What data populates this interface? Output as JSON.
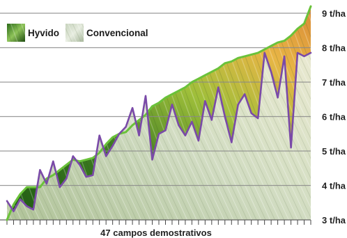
{
  "chart_data": {
    "type": "line",
    "xlabel": "47 campos demostrativos",
    "ylabel": "",
    "ylim": [
      3,
      9.2
    ],
    "yticks": [
      {
        "value": 3,
        "label": "3 t/ha"
      },
      {
        "value": 4,
        "label": "4 t/ha"
      },
      {
        "value": 5,
        "label": "5 t/ha"
      },
      {
        "value": 6,
        "label": "6 t/ha"
      },
      {
        "value": 7,
        "label": "7 t/ha"
      },
      {
        "value": 8,
        "label": "8 t/ha"
      },
      {
        "value": 9,
        "label": "9 t/ha"
      }
    ],
    "grid": true,
    "legend": "top-left",
    "x_count": 47,
    "series": [
      {
        "name": "Hyvido",
        "color": "#6ac23a",
        "values": [
          3.0,
          3.45,
          3.75,
          3.95,
          3.95,
          3.95,
          4.2,
          4.3,
          4.45,
          4.6,
          4.75,
          4.7,
          4.75,
          4.8,
          4.95,
          5.2,
          5.4,
          5.5,
          5.55,
          5.75,
          5.9,
          6.05,
          6.3,
          6.4,
          6.55,
          6.65,
          6.75,
          6.85,
          7.0,
          7.1,
          7.2,
          7.3,
          7.4,
          7.55,
          7.6,
          7.7,
          7.75,
          7.8,
          7.85,
          7.95,
          8.05,
          8.15,
          8.2,
          8.35,
          8.55,
          8.7,
          9.2
        ]
      },
      {
        "name": "Convencional",
        "color": "#7a4aa8",
        "values": [
          3.55,
          3.25,
          3.6,
          3.4,
          3.3,
          4.45,
          4.05,
          4.7,
          3.95,
          4.2,
          4.85,
          4.6,
          4.25,
          4.3,
          5.45,
          4.85,
          5.15,
          5.5,
          5.7,
          6.25,
          5.45,
          6.6,
          4.75,
          5.5,
          5.6,
          6.35,
          5.75,
          5.45,
          5.85,
          5.3,
          6.45,
          5.9,
          6.85,
          6.0,
          5.25,
          6.35,
          6.65,
          6.1,
          5.95,
          7.85,
          7.3,
          6.55,
          7.75,
          5.1,
          7.85,
          7.75,
          7.85
        ]
      }
    ]
  }
}
